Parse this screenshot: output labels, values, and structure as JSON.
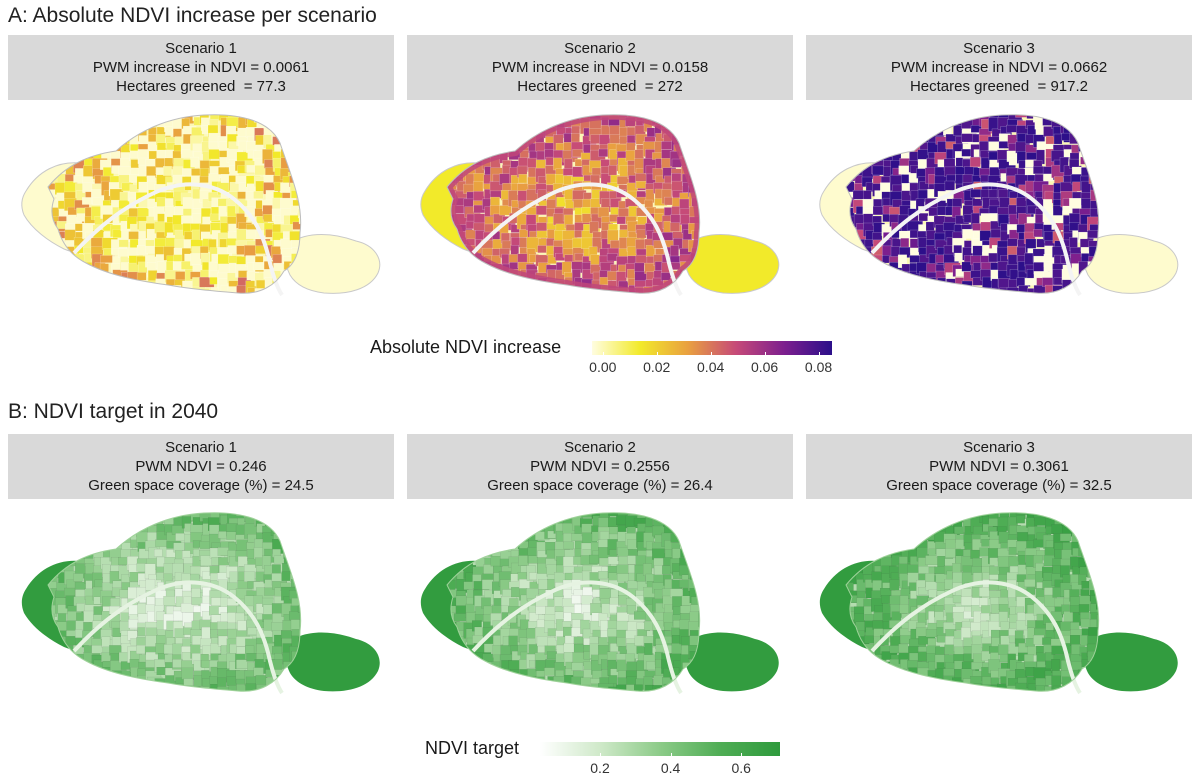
{
  "section_a": {
    "title": "A: Absolute NDVI increase per scenario",
    "panels": [
      {
        "scenario": "Scenario 1",
        "metric": "PWM increase in NDVI = 0.0061",
        "area": "Hectares greened  = 77.3",
        "level": 0.15
      },
      {
        "scenario": "Scenario 2",
        "metric": "PWM increase in NDVI = 0.0158",
        "area": "Hectares greened  = 272",
        "level": 0.42
      },
      {
        "scenario": "Scenario 3",
        "metric": "PWM increase in NDVI = 0.0662",
        "area": "Hectares greened  = 917.2",
        "level": 0.92
      }
    ],
    "legend": {
      "title": "Absolute NDVI increase",
      "ticks": [
        "0.00",
        "0.02",
        "0.04",
        "0.06",
        "0.08"
      ],
      "tick_values": [
        0.0,
        0.02,
        0.04,
        0.06,
        0.08
      ],
      "range": [
        -0.004,
        0.085
      ],
      "colors": [
        "#fffde0",
        "#f2ea2a",
        "#e9a040",
        "#c64a78",
        "#7d1f8e",
        "#2b0f8a"
      ]
    }
  },
  "section_b": {
    "title": "B: NDVI target in 2040",
    "panels": [
      {
        "scenario": "Scenario 1",
        "metric": "PWM NDVI = 0.246",
        "area": "Green space coverage (%) = 24.5",
        "level": 0.0
      },
      {
        "scenario": "Scenario 2",
        "metric": "PWM NDVI = 0.2556",
        "area": "Green space coverage (%) = 26.4",
        "level": 0.25
      },
      {
        "scenario": "Scenario 3",
        "metric": "PWM NDVI = 0.3061",
        "area": "Green space coverage (%) = 32.5",
        "level": 0.6
      }
    ],
    "legend": {
      "title": "NDVI target",
      "ticks": [
        "0.2",
        "0.4",
        "0.6"
      ],
      "tick_values": [
        0.2,
        0.4,
        0.6
      ],
      "range": [
        0.03,
        0.71
      ],
      "colors": [
        "#ffffff",
        "#cfe9c9",
        "#8ccb88",
        "#4fad55",
        "#2e9a3c"
      ]
    }
  }
}
